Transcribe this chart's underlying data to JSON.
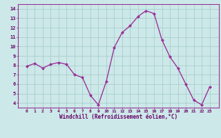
{
  "x": [
    0,
    1,
    2,
    3,
    4,
    5,
    6,
    7,
    8,
    9,
    10,
    11,
    12,
    13,
    14,
    15,
    16,
    17,
    18,
    19,
    20,
    21,
    22,
    23
  ],
  "y": [
    7.9,
    8.2,
    7.7,
    8.1,
    8.3,
    8.1,
    7.0,
    6.7,
    4.8,
    3.8,
    6.3,
    9.9,
    11.5,
    12.2,
    13.2,
    13.8,
    13.5,
    10.7,
    8.9,
    7.7,
    6.0,
    4.3,
    3.8,
    5.7
  ],
  "line_color": "#993399",
  "bg_color": "#cce8e8",
  "grid_color": "#aacece",
  "xlabel": "Windchill (Refroidissement éolien,°C)",
  "ylim": [
    3.5,
    14.5
  ],
  "yticks": [
    4,
    5,
    6,
    7,
    8,
    9,
    10,
    11,
    12,
    13,
    14
  ],
  "xticks": [
    0,
    1,
    2,
    3,
    4,
    5,
    6,
    7,
    8,
    9,
    10,
    11,
    12,
    13,
    14,
    15,
    16,
    17,
    18,
    19,
    20,
    21,
    22,
    23
  ],
  "font_color": "#660066",
  "marker": "D",
  "marker_size": 2.0,
  "line_width": 1.0
}
